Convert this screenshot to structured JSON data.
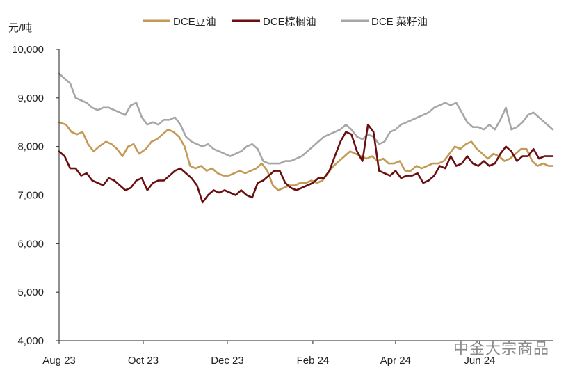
{
  "watermark": "中金大宗商品",
  "chart_data": {
    "type": "line",
    "title": "",
    "xlabel": "",
    "ylabel": "元/吨",
    "ylim": [
      4000,
      10000
    ],
    "yticks": [
      4000,
      5000,
      6000,
      7000,
      8000,
      9000,
      10000
    ],
    "ytick_labels": [
      "4,000",
      "5,000",
      "6,000",
      "7,000",
      "8,000",
      "9,000",
      "10,000"
    ],
    "xticks": [
      "2023-08-01",
      "2023-10-01",
      "2023-12-01",
      "2024-02-01",
      "2024-04-01",
      "2024-06-01"
    ],
    "xtick_labels": [
      "Aug 23",
      "Oct 23",
      "Dec 23",
      "Feb 24",
      "Apr 24",
      "Jun 24"
    ],
    "xlim": [
      "2023-08-01",
      "2024-07-24"
    ],
    "grid": false,
    "legend_position": "top",
    "series": [
      {
        "name": "DCE豆油",
        "color": "#C39A55",
        "x": [
          "2023-08-01",
          "2023-08-06",
          "2023-08-10",
          "2023-08-14",
          "2023-08-18",
          "2023-08-22",
          "2023-08-26",
          "2023-08-30",
          "2023-09-04",
          "2023-09-08",
          "2023-09-12",
          "2023-09-16",
          "2023-09-20",
          "2023-09-24",
          "2023-09-28",
          "2023-10-03",
          "2023-10-07",
          "2023-10-11",
          "2023-10-15",
          "2023-10-19",
          "2023-10-23",
          "2023-10-27",
          "2023-10-31",
          "2023-11-04",
          "2023-11-08",
          "2023-11-12",
          "2023-11-16",
          "2023-11-20",
          "2023-11-24",
          "2023-11-28",
          "2023-12-02",
          "2023-12-06",
          "2023-12-10",
          "2023-12-14",
          "2023-12-18",
          "2023-12-22",
          "2023-12-26",
          "2023-12-30",
          "2024-01-03",
          "2024-01-07",
          "2024-01-11",
          "2024-01-15",
          "2024-01-19",
          "2024-01-23",
          "2024-01-27",
          "2024-01-31",
          "2024-02-04",
          "2024-02-08",
          "2024-02-12",
          "2024-02-16",
          "2024-02-20",
          "2024-02-24",
          "2024-02-28",
          "2024-03-03",
          "2024-03-07",
          "2024-03-11",
          "2024-03-15",
          "2024-03-19",
          "2024-03-23",
          "2024-03-27",
          "2024-03-31",
          "2024-04-04",
          "2024-04-08",
          "2024-04-12",
          "2024-04-16",
          "2024-04-20",
          "2024-04-24",
          "2024-04-28",
          "2024-05-02",
          "2024-05-06",
          "2024-05-10",
          "2024-05-14",
          "2024-05-18",
          "2024-05-22",
          "2024-05-26",
          "2024-05-30",
          "2024-06-03",
          "2024-06-07",
          "2024-06-11",
          "2024-06-15",
          "2024-06-19",
          "2024-06-23",
          "2024-06-27",
          "2024-07-01",
          "2024-07-05",
          "2024-07-09",
          "2024-07-13",
          "2024-07-17",
          "2024-07-21",
          "2024-07-24"
        ],
        "values": [
          8500,
          8450,
          8300,
          8250,
          8300,
          8050,
          7900,
          8000,
          8100,
          8050,
          7950,
          7800,
          8000,
          8050,
          7850,
          7950,
          8100,
          8150,
          8250,
          8350,
          8300,
          8200,
          8000,
          7600,
          7550,
          7600,
          7500,
          7550,
          7450,
          7400,
          7400,
          7450,
          7500,
          7450,
          7500,
          7550,
          7650,
          7500,
          7200,
          7100,
          7150,
          7200,
          7200,
          7250,
          7250,
          7300,
          7250,
          7300,
          7450,
          7600,
          7700,
          7800,
          7900,
          7850,
          7800,
          7750,
          7800,
          7700,
          7750,
          7650,
          7650,
          7700,
          7500,
          7500,
          7600,
          7550,
          7600,
          7650,
          7650,
          7700,
          7850,
          8000,
          7950,
          8050,
          8100,
          7950,
          7850,
          7750,
          7850,
          7800,
          7700,
          7750,
          7850,
          7950,
          7950,
          7700,
          7600,
          7650,
          7600,
          7600
        ]
      },
      {
        "name": "DCE棕榈油",
        "color": "#6B0E0E",
        "x": [
          "2023-08-01",
          "2023-08-05",
          "2023-08-09",
          "2023-08-13",
          "2023-08-17",
          "2023-08-21",
          "2023-08-25",
          "2023-08-29",
          "2023-09-02",
          "2023-09-06",
          "2023-09-10",
          "2023-09-14",
          "2023-09-18",
          "2023-09-22",
          "2023-09-26",
          "2023-09-30",
          "2023-10-04",
          "2023-10-08",
          "2023-10-12",
          "2023-10-16",
          "2023-10-20",
          "2023-10-24",
          "2023-10-28",
          "2023-11-01",
          "2023-11-05",
          "2023-11-09",
          "2023-11-13",
          "2023-11-17",
          "2023-11-21",
          "2023-11-25",
          "2023-11-29",
          "2023-12-03",
          "2023-12-07",
          "2023-12-11",
          "2023-12-15",
          "2023-12-19",
          "2023-12-23",
          "2023-12-27",
          "2023-12-31",
          "2024-01-04",
          "2024-01-08",
          "2024-01-12",
          "2024-01-16",
          "2024-01-20",
          "2024-01-24",
          "2024-01-28",
          "2024-02-01",
          "2024-02-05",
          "2024-02-09",
          "2024-02-13",
          "2024-02-17",
          "2024-02-21",
          "2024-02-25",
          "2024-02-29",
          "2024-03-04",
          "2024-03-08",
          "2024-03-12",
          "2024-03-16",
          "2024-03-20",
          "2024-03-24",
          "2024-03-28",
          "2024-04-01",
          "2024-04-05",
          "2024-04-09",
          "2024-04-13",
          "2024-04-17",
          "2024-04-21",
          "2024-04-25",
          "2024-04-29",
          "2024-05-03",
          "2024-05-07",
          "2024-05-11",
          "2024-05-15",
          "2024-05-19",
          "2024-05-23",
          "2024-05-27",
          "2024-05-31",
          "2024-06-04",
          "2024-06-08",
          "2024-06-12",
          "2024-06-16",
          "2024-06-20",
          "2024-06-24",
          "2024-06-28",
          "2024-07-02",
          "2024-07-06",
          "2024-07-10",
          "2024-07-14",
          "2024-07-18",
          "2024-07-24"
        ],
        "values": [
          7900,
          7800,
          7550,
          7550,
          7400,
          7450,
          7300,
          7250,
          7200,
          7350,
          7300,
          7200,
          7100,
          7150,
          7300,
          7350,
          7100,
          7250,
          7300,
          7300,
          7400,
          7500,
          7550,
          7450,
          7350,
          7200,
          6850,
          7000,
          7100,
          7050,
          7100,
          7050,
          7000,
          7100,
          7000,
          6950,
          7250,
          7300,
          7400,
          7500,
          7500,
          7250,
          7150,
          7100,
          7150,
          7200,
          7250,
          7350,
          7350,
          7500,
          7800,
          8100,
          8300,
          8250,
          7900,
          7700,
          8450,
          8300,
          7500,
          7450,
          7400,
          7500,
          7350,
          7400,
          7400,
          7450,
          7250,
          7300,
          7400,
          7600,
          7550,
          7800,
          7600,
          7650,
          7800,
          7650,
          7600,
          7700,
          7600,
          7650,
          7850,
          8000,
          7900,
          7700,
          7800,
          7800,
          7950,
          7750,
          7800,
          7800
        ]
      },
      {
        "name": "DCE 菜籽油",
        "color": "#A6A6A6",
        "x": [
          "2023-08-01",
          "2023-08-05",
          "2023-08-09",
          "2023-08-13",
          "2023-08-17",
          "2023-08-21",
          "2023-08-25",
          "2023-08-29",
          "2023-09-02",
          "2023-09-06",
          "2023-09-10",
          "2023-09-14",
          "2023-09-18",
          "2023-09-22",
          "2023-09-26",
          "2023-09-30",
          "2023-10-04",
          "2023-10-08",
          "2023-10-12",
          "2023-10-16",
          "2023-10-20",
          "2023-10-24",
          "2023-10-28",
          "2023-11-01",
          "2023-11-05",
          "2023-11-09",
          "2023-11-13",
          "2023-11-17",
          "2023-11-21",
          "2023-11-25",
          "2023-11-29",
          "2023-12-03",
          "2023-12-07",
          "2023-12-11",
          "2023-12-15",
          "2023-12-19",
          "2023-12-23",
          "2023-12-27",
          "2023-12-31",
          "2024-01-04",
          "2024-01-08",
          "2024-01-12",
          "2024-01-16",
          "2024-01-20",
          "2024-01-24",
          "2024-01-28",
          "2024-02-01",
          "2024-02-05",
          "2024-02-09",
          "2024-02-13",
          "2024-02-17",
          "2024-02-21",
          "2024-02-25",
          "2024-02-29",
          "2024-03-04",
          "2024-03-08",
          "2024-03-12",
          "2024-03-16",
          "2024-03-20",
          "2024-03-24",
          "2024-03-28",
          "2024-04-01",
          "2024-04-05",
          "2024-04-09",
          "2024-04-13",
          "2024-04-17",
          "2024-04-21",
          "2024-04-25",
          "2024-04-29",
          "2024-05-03",
          "2024-05-07",
          "2024-05-11",
          "2024-05-15",
          "2024-05-19",
          "2024-05-23",
          "2024-05-27",
          "2024-05-31",
          "2024-06-04",
          "2024-06-08",
          "2024-06-12",
          "2024-06-16",
          "2024-06-20",
          "2024-06-24",
          "2024-06-28",
          "2024-07-02",
          "2024-07-06",
          "2024-07-10",
          "2024-07-14",
          "2024-07-18",
          "2024-07-24"
        ],
        "values": [
          9500,
          9400,
          9300,
          9000,
          8950,
          8900,
          8800,
          8750,
          8800,
          8800,
          8750,
          8700,
          8650,
          8850,
          8900,
          8600,
          8450,
          8500,
          8450,
          8550,
          8550,
          8600,
          8450,
          8200,
          8100,
          8050,
          8000,
          8050,
          7950,
          7900,
          7850,
          7800,
          7850,
          7900,
          8000,
          8050,
          7950,
          7700,
          7650,
          7650,
          7650,
          7700,
          7700,
          7750,
          7800,
          7900,
          8000,
          8100,
          8200,
          8250,
          8300,
          8350,
          8450,
          8350,
          8200,
          8150,
          8250,
          8200,
          8050,
          8100,
          8300,
          8350,
          8450,
          8500,
          8550,
          8600,
          8650,
          8700,
          8800,
          8850,
          8900,
          8850,
          8900,
          8700,
          8500,
          8400,
          8400,
          8350,
          8450,
          8350,
          8550,
          8800,
          8350,
          8400,
          8500,
          8650,
          8700,
          8600,
          8500,
          8350
        ]
      }
    ]
  }
}
